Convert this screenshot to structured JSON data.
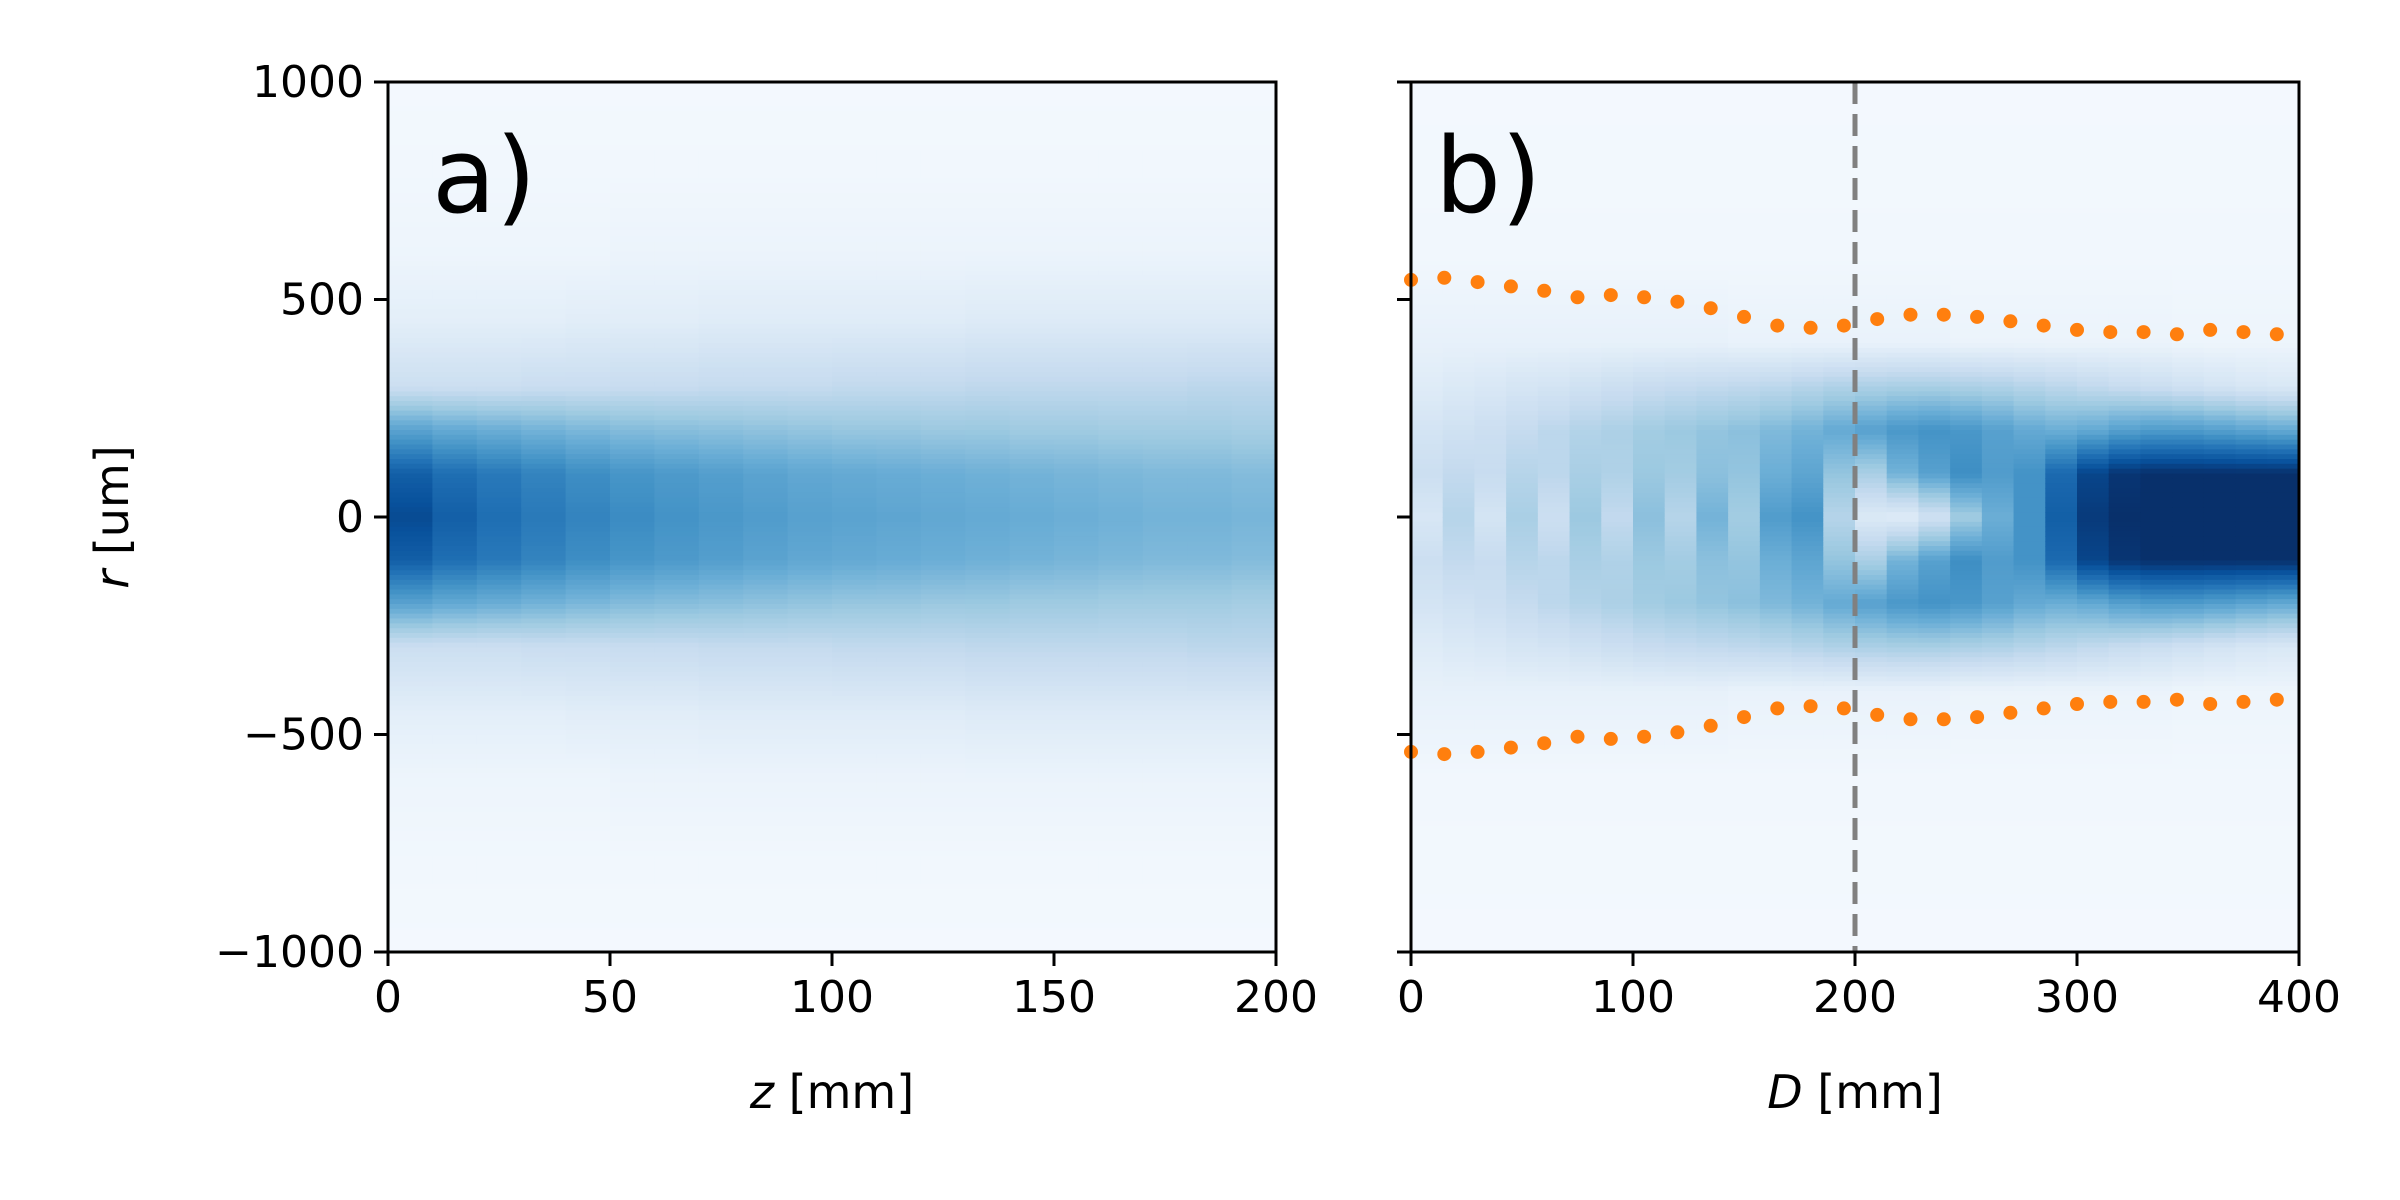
{
  "chart_data": [
    {
      "type": "heatmap",
      "panel_label": "a)",
      "xlabel_var": "z",
      "xlabel_unit": " [mm]",
      "ylabel_var": "r",
      "ylabel_unit": " [um]",
      "xlim": [
        0,
        200
      ],
      "ylim": [
        -1000,
        1000
      ],
      "xticks": [
        0,
        50,
        100,
        150,
        200
      ],
      "xtick_labels": [
        "0",
        "50",
        "100",
        "150",
        "200"
      ],
      "yticks": [
        1000,
        500,
        0,
        -500,
        -1000
      ],
      "ytick_labels": [
        "1000",
        "500",
        "0",
        "−500",
        "−1000"
      ],
      "colormap": "Blues",
      "grid": false,
      "heat_rows": [
        {
          "r": 1000,
          "values": [
            0.02,
            0.02,
            0.02,
            0.02,
            0.02,
            0.02,
            0.02,
            0.02,
            0.02,
            0.02,
            0.02,
            0.02,
            0.02,
            0.02,
            0.02,
            0.02,
            0.02,
            0.02,
            0.02,
            0.02
          ]
        },
        {
          "r": 800,
          "values": [
            0.03,
            0.03,
            0.03,
            0.03,
            0.03,
            0.03,
            0.03,
            0.03,
            0.03,
            0.03,
            0.03,
            0.03,
            0.03,
            0.03,
            0.03,
            0.03,
            0.03,
            0.03,
            0.03,
            0.03
          ]
        },
        {
          "r": 600,
          "values": [
            0.05,
            0.05,
            0.05,
            0.05,
            0.05,
            0.06,
            0.06,
            0.06,
            0.06,
            0.06,
            0.06,
            0.06,
            0.06,
            0.06,
            0.06,
            0.06,
            0.06,
            0.06,
            0.06,
            0.06
          ]
        },
        {
          "r": 450,
          "values": [
            0.1,
            0.1,
            0.1,
            0.1,
            0.11,
            0.11,
            0.11,
            0.12,
            0.12,
            0.12,
            0.12,
            0.12,
            0.12,
            0.13,
            0.13,
            0.13,
            0.13,
            0.13,
            0.13,
            0.13
          ]
        },
        {
          "r": 300,
          "values": [
            0.22,
            0.22,
            0.22,
            0.23,
            0.23,
            0.24,
            0.24,
            0.25,
            0.25,
            0.25,
            0.26,
            0.26,
            0.26,
            0.27,
            0.27,
            0.27,
            0.27,
            0.27,
            0.28,
            0.28
          ]
        },
        {
          "r": 200,
          "values": [
            0.55,
            0.52,
            0.5,
            0.48,
            0.46,
            0.44,
            0.43,
            0.42,
            0.41,
            0.4,
            0.39,
            0.39,
            0.38,
            0.38,
            0.37,
            0.37,
            0.36,
            0.36,
            0.36,
            0.35
          ]
        },
        {
          "r": 100,
          "values": [
            0.82,
            0.76,
            0.72,
            0.68,
            0.64,
            0.61,
            0.59,
            0.57,
            0.55,
            0.53,
            0.52,
            0.51,
            0.5,
            0.49,
            0.48,
            0.47,
            0.46,
            0.45,
            0.45,
            0.44
          ]
        },
        {
          "r": 0,
          "values": [
            0.9,
            0.82,
            0.76,
            0.72,
            0.68,
            0.65,
            0.62,
            0.6,
            0.58,
            0.56,
            0.55,
            0.54,
            0.53,
            0.52,
            0.51,
            0.5,
            0.49,
            0.48,
            0.48,
            0.47
          ]
        },
        {
          "r": -100,
          "values": [
            0.82,
            0.76,
            0.72,
            0.68,
            0.64,
            0.61,
            0.59,
            0.57,
            0.55,
            0.53,
            0.52,
            0.51,
            0.5,
            0.49,
            0.48,
            0.47,
            0.46,
            0.45,
            0.45,
            0.44
          ]
        },
        {
          "r": -200,
          "values": [
            0.55,
            0.52,
            0.5,
            0.48,
            0.46,
            0.44,
            0.43,
            0.42,
            0.41,
            0.4,
            0.39,
            0.39,
            0.38,
            0.38,
            0.37,
            0.37,
            0.36,
            0.36,
            0.36,
            0.35
          ]
        },
        {
          "r": -300,
          "values": [
            0.22,
            0.22,
            0.22,
            0.23,
            0.23,
            0.24,
            0.24,
            0.25,
            0.25,
            0.25,
            0.26,
            0.26,
            0.26,
            0.27,
            0.27,
            0.27,
            0.27,
            0.27,
            0.28,
            0.28
          ]
        },
        {
          "r": -450,
          "values": [
            0.1,
            0.1,
            0.1,
            0.1,
            0.11,
            0.11,
            0.11,
            0.12,
            0.12,
            0.12,
            0.12,
            0.12,
            0.12,
            0.13,
            0.13,
            0.13,
            0.13,
            0.13,
            0.13,
            0.13
          ]
        },
        {
          "r": -600,
          "values": [
            0.05,
            0.05,
            0.05,
            0.05,
            0.05,
            0.06,
            0.06,
            0.06,
            0.06,
            0.06,
            0.06,
            0.06,
            0.06,
            0.06,
            0.06,
            0.06,
            0.06,
            0.06,
            0.06,
            0.06
          ]
        },
        {
          "r": -800,
          "values": [
            0.03,
            0.03,
            0.03,
            0.03,
            0.03,
            0.03,
            0.03,
            0.03,
            0.03,
            0.03,
            0.03,
            0.03,
            0.03,
            0.03,
            0.03,
            0.03,
            0.03,
            0.03,
            0.03,
            0.03
          ]
        },
        {
          "r": -1000,
          "values": [
            0.02,
            0.02,
            0.02,
            0.02,
            0.02,
            0.02,
            0.02,
            0.02,
            0.02,
            0.02,
            0.02,
            0.02,
            0.02,
            0.02,
            0.02,
            0.02,
            0.02,
            0.02,
            0.02,
            0.02
          ]
        }
      ]
    },
    {
      "type": "heatmap",
      "panel_label": "b)",
      "xlabel_var": "D",
      "xlabel_unit": " [mm]",
      "xlim": [
        0,
        400
      ],
      "ylim": [
        -1000,
        1000
      ],
      "xticks": [
        0,
        100,
        200,
        300,
        400
      ],
      "xtick_labels": [
        "0",
        "100",
        "200",
        "300",
        "400"
      ],
      "yticks": [
        1000,
        500,
        0,
        -500,
        -1000
      ],
      "ytick_labels": [],
      "colormap": "Blues",
      "grid": false,
      "vline": {
        "x": 200,
        "style": "dashed",
        "color": "#808080"
      },
      "dot_color": "#ff7f0e",
      "upper_dots": {
        "x": [
          0,
          15,
          30,
          45,
          60,
          75,
          90,
          105,
          120,
          135,
          150,
          165,
          180,
          195,
          210,
          225,
          240,
          255,
          270,
          285,
          300,
          315,
          330,
          345,
          360,
          375,
          390
        ],
        "y": [
          545,
          550,
          540,
          530,
          520,
          505,
          510,
          505,
          495,
          480,
          460,
          440,
          435,
          440,
          455,
          465,
          465,
          460,
          450,
          440,
          430,
          425,
          425,
          420,
          430,
          425,
          420
        ]
      },
      "lower_dots": {
        "x": [
          0,
          15,
          30,
          45,
          60,
          75,
          90,
          105,
          120,
          135,
          150,
          165,
          180,
          195,
          210,
          225,
          240,
          255,
          270,
          285,
          300,
          315,
          330,
          345,
          360,
          375,
          390
        ],
        "y": [
          -540,
          -545,
          -540,
          -530,
          -520,
          -505,
          -510,
          -505,
          -495,
          -480,
          -460,
          -440,
          -435,
          -440,
          -455,
          -465,
          -465,
          -460,
          -450,
          -440,
          -430,
          -425,
          -425,
          -420,
          -430,
          -425,
          -420
        ]
      },
      "heat_rows": [
        {
          "r": 1000,
          "values": [
            0.02,
            0.02,
            0.02,
            0.02,
            0.02,
            0.02,
            0.02,
            0.02,
            0.02,
            0.02,
            0.02,
            0.02,
            0.02,
            0.02,
            0.02,
            0.02,
            0.02,
            0.02,
            0.02,
            0.02,
            0.02,
            0.02,
            0.02,
            0.02,
            0.02,
            0.02,
            0.02,
            0.02
          ]
        },
        {
          "r": 600,
          "values": [
            0.03,
            0.03,
            0.03,
            0.03,
            0.03,
            0.03,
            0.03,
            0.03,
            0.03,
            0.03,
            0.03,
            0.03,
            0.03,
            0.03,
            0.03,
            0.03,
            0.03,
            0.03,
            0.03,
            0.03,
            0.03,
            0.03,
            0.03,
            0.03,
            0.03,
            0.03,
            0.03,
            0.03
          ]
        },
        {
          "r": 400,
          "values": [
            0.08,
            0.08,
            0.08,
            0.08,
            0.08,
            0.08,
            0.08,
            0.08,
            0.08,
            0.08,
            0.07,
            0.07,
            0.07,
            0.07,
            0.07,
            0.07,
            0.07,
            0.06,
            0.06,
            0.06,
            0.06,
            0.06,
            0.06,
            0.06,
            0.05,
            0.05,
            0.05,
            0.05
          ]
        },
        {
          "r": 300,
          "values": [
            0.12,
            0.14,
            0.15,
            0.17,
            0.18,
            0.2,
            0.22,
            0.24,
            0.25,
            0.26,
            0.27,
            0.28,
            0.3,
            0.32,
            0.33,
            0.34,
            0.34,
            0.33,
            0.32,
            0.3,
            0.28,
            0.26,
            0.24,
            0.22,
            0.2,
            0.18,
            0.16,
            0.15
          ]
        },
        {
          "r": 200,
          "values": [
            0.18,
            0.2,
            0.22,
            0.25,
            0.28,
            0.31,
            0.33,
            0.36,
            0.38,
            0.4,
            0.42,
            0.45,
            0.48,
            0.52,
            0.56,
            0.6,
            0.62,
            0.6,
            0.56,
            0.52,
            0.5,
            0.52,
            0.56,
            0.58,
            0.58,
            0.56,
            0.54,
            0.52
          ]
        },
        {
          "r": 100,
          "values": [
            0.22,
            0.26,
            0.24,
            0.3,
            0.28,
            0.34,
            0.32,
            0.38,
            0.36,
            0.42,
            0.4,
            0.5,
            0.54,
            0.4,
            0.34,
            0.48,
            0.56,
            0.64,
            0.58,
            0.62,
            0.78,
            0.92,
            0.98,
            1.0,
            1.0,
            1.0,
            1.0,
            1.0
          ]
        },
        {
          "r": 0,
          "values": [
            0.16,
            0.3,
            0.18,
            0.34,
            0.22,
            0.38,
            0.26,
            0.42,
            0.3,
            0.48,
            0.36,
            0.58,
            0.62,
            0.3,
            0.14,
            0.12,
            0.2,
            0.36,
            0.5,
            0.62,
            0.82,
            0.96,
            1.0,
            1.0,
            1.0,
            1.0,
            1.0,
            1.0
          ]
        },
        {
          "r": -100,
          "values": [
            0.22,
            0.26,
            0.24,
            0.3,
            0.28,
            0.34,
            0.32,
            0.38,
            0.36,
            0.42,
            0.4,
            0.5,
            0.54,
            0.4,
            0.34,
            0.48,
            0.56,
            0.64,
            0.58,
            0.62,
            0.78,
            0.92,
            0.98,
            1.0,
            1.0,
            1.0,
            1.0,
            1.0
          ]
        },
        {
          "r": -200,
          "values": [
            0.18,
            0.2,
            0.22,
            0.25,
            0.28,
            0.31,
            0.33,
            0.36,
            0.38,
            0.4,
            0.42,
            0.45,
            0.48,
            0.52,
            0.56,
            0.6,
            0.62,
            0.6,
            0.56,
            0.52,
            0.5,
            0.52,
            0.56,
            0.58,
            0.58,
            0.56,
            0.54,
            0.52
          ]
        },
        {
          "r": -300,
          "values": [
            0.12,
            0.14,
            0.15,
            0.17,
            0.18,
            0.2,
            0.22,
            0.24,
            0.25,
            0.26,
            0.27,
            0.28,
            0.3,
            0.32,
            0.33,
            0.34,
            0.34,
            0.33,
            0.32,
            0.3,
            0.28,
            0.26,
            0.24,
            0.22,
            0.2,
            0.18,
            0.16,
            0.15
          ]
        },
        {
          "r": -400,
          "values": [
            0.08,
            0.08,
            0.08,
            0.08,
            0.08,
            0.08,
            0.08,
            0.08,
            0.08,
            0.08,
            0.07,
            0.07,
            0.07,
            0.07,
            0.07,
            0.07,
            0.07,
            0.06,
            0.06,
            0.06,
            0.06,
            0.06,
            0.06,
            0.06,
            0.05,
            0.05,
            0.05,
            0.05
          ]
        },
        {
          "r": -600,
          "values": [
            0.03,
            0.03,
            0.03,
            0.03,
            0.03,
            0.03,
            0.03,
            0.03,
            0.03,
            0.03,
            0.03,
            0.03,
            0.03,
            0.03,
            0.03,
            0.03,
            0.03,
            0.03,
            0.03,
            0.03,
            0.03,
            0.03,
            0.03,
            0.03,
            0.03,
            0.03,
            0.03,
            0.03
          ]
        },
        {
          "r": -1000,
          "values": [
            0.02,
            0.02,
            0.02,
            0.02,
            0.02,
            0.02,
            0.02,
            0.02,
            0.02,
            0.02,
            0.02,
            0.02,
            0.02,
            0.02,
            0.02,
            0.02,
            0.02,
            0.02,
            0.02,
            0.02,
            0.02,
            0.02,
            0.02,
            0.02,
            0.02,
            0.02,
            0.02,
            0.02
          ]
        }
      ]
    }
  ]
}
